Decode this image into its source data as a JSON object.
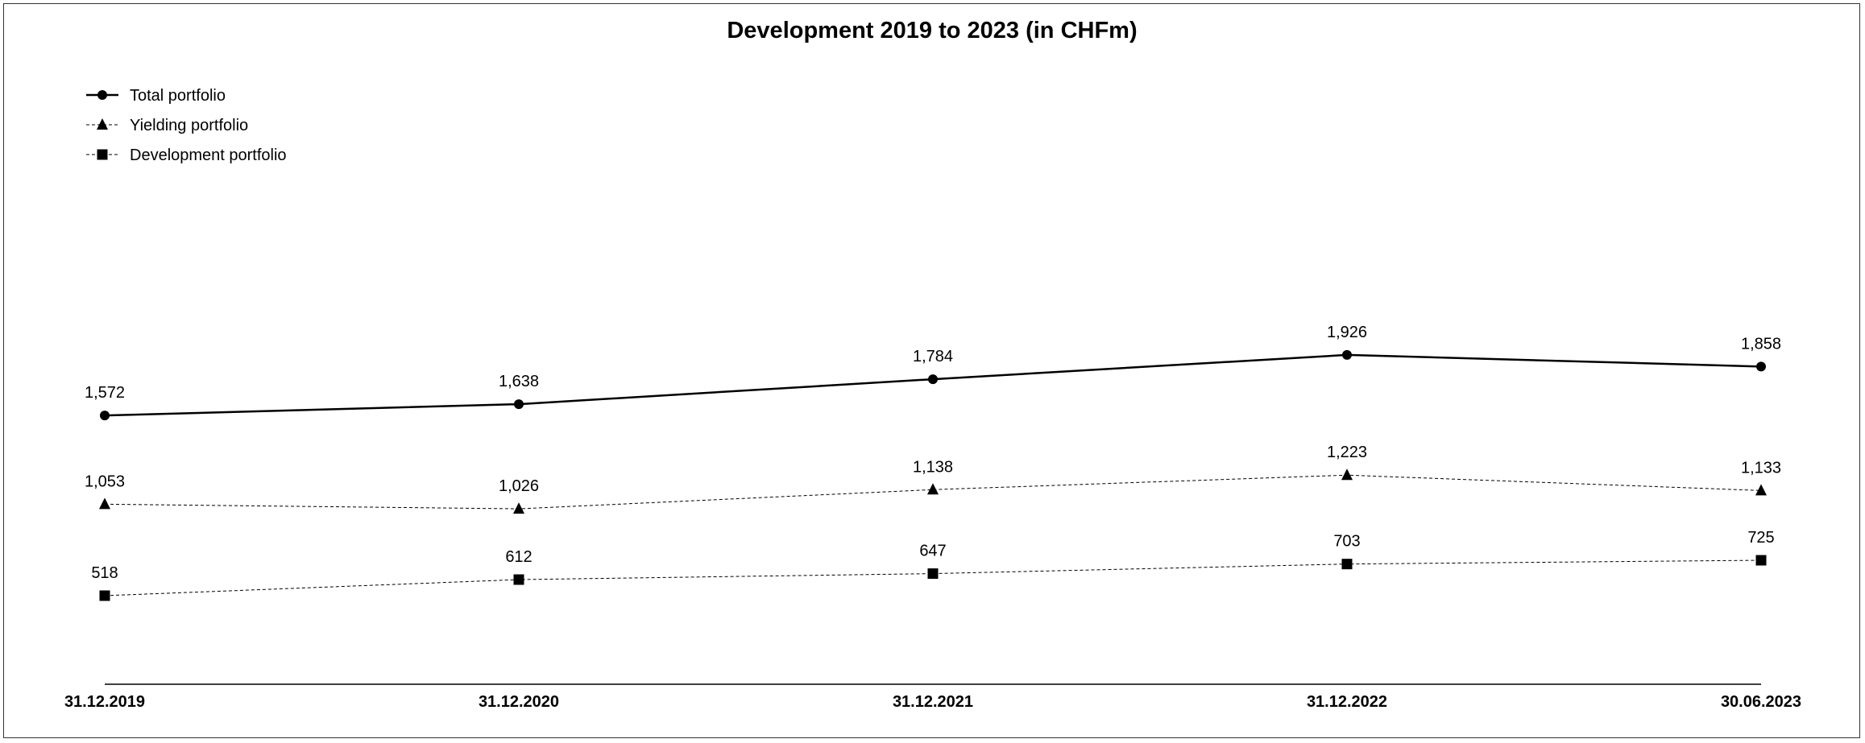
{
  "chart_data": {
    "type": "line",
    "title": "Development 2019 to 2023 (in CHFm)",
    "xlabel": "",
    "ylabel": "",
    "categories": [
      "31.12.2019",
      "31.12.2020",
      "31.12.2021",
      "31.12.2022",
      "30.06.2023"
    ],
    "ylim": [
      0,
      2200
    ],
    "grid": false,
    "legend_position": "top-left",
    "series": [
      {
        "name": "Total portfolio",
        "values": [
          1572,
          1638,
          1784,
          1926,
          1858
        ],
        "labels": [
          "1,572",
          "1,638",
          "1,784",
          "1,926",
          "1,858"
        ],
        "marker": "circle",
        "line": "solid",
        "color": "#000000"
      },
      {
        "name": "Yielding portfolio",
        "values": [
          1053,
          1026,
          1138,
          1223,
          1133
        ],
        "labels": [
          "1,053",
          "1,026",
          "1,138",
          "1,223",
          "1,133"
        ],
        "marker": "triangle",
        "line": "dashed",
        "color": "#000000"
      },
      {
        "name": "Development portfolio",
        "values": [
          518,
          612,
          647,
          703,
          725
        ],
        "labels": [
          "518",
          "612",
          "647",
          "703",
          "725"
        ],
        "marker": "square",
        "line": "dashed",
        "color": "#000000"
      }
    ]
  }
}
